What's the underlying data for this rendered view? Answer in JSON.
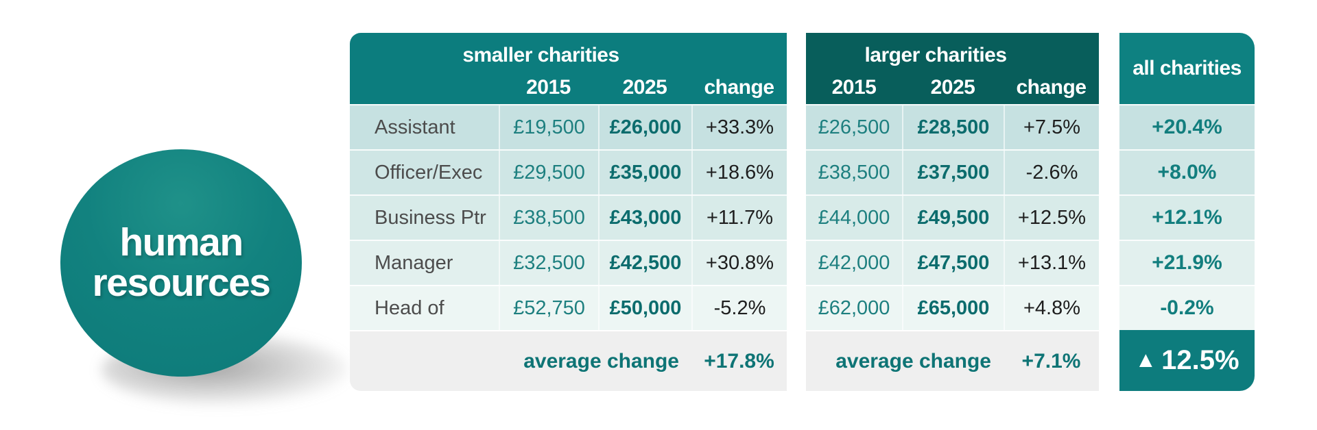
{
  "badge": {
    "line1": "human",
    "line2": "resources",
    "color": "#0e7c7b"
  },
  "columns": {
    "y2015": "2015",
    "y2025": "2025",
    "change": "change"
  },
  "smaller": {
    "title": "smaller charities",
    "rows": [
      {
        "role": "Assistant",
        "y2015": "£19,500",
        "y2025": "£26,000",
        "change": "+33.3%"
      },
      {
        "role": "Officer/Exec",
        "y2015": "£29,500",
        "y2025": "£35,000",
        "change": "+18.6%"
      },
      {
        "role": "Business Ptr",
        "y2015": "£38,500",
        "y2025": "£43,000",
        "change": "+11.7%"
      },
      {
        "role": "Manager",
        "y2015": "£32,500",
        "y2025": "£42,500",
        "change": "+30.8%"
      },
      {
        "role": "Head of",
        "y2015": "£52,750",
        "y2025": "£50,000",
        "change": "-5.2%"
      }
    ],
    "footer_label": "average change",
    "footer_value": "+17.8%"
  },
  "larger": {
    "title": "larger charities",
    "rows": [
      {
        "y2015": "£26,500",
        "y2025": "£28,500",
        "change": "+7.5%"
      },
      {
        "y2015": "£38,500",
        "y2025": "£37,500",
        "change": "-2.6%"
      },
      {
        "y2015": "£44,000",
        "y2025": "£49,500",
        "change": "+12.5%"
      },
      {
        "y2015": "£42,000",
        "y2025": "£47,500",
        "change": "+13.1%"
      },
      {
        "y2015": "£62,000",
        "y2025": "£65,000",
        "change": "+4.8%"
      }
    ],
    "footer_label": "average change",
    "footer_value": "+7.1%"
  },
  "all": {
    "title": "all charities",
    "values": [
      "+20.4%",
      "+8.0%",
      "+12.1%",
      "+21.9%",
      "-0.2%"
    ],
    "footer_icon": "▲",
    "footer_value": "12.5%"
  },
  "colors": {
    "header_teal": "#0c7d7e",
    "header_dark_teal": "#085e5b",
    "all_header_teal": "#0e8181",
    "footer_gray": "#efefef",
    "value_teal": "#1d7f7f",
    "value_teal_bold": "#0c6c6d",
    "change_text": "#1e1e1e",
    "row_shades": [
      "#c6e1e1",
      "#cfe6e5",
      "#d8ebe9",
      "#e2f0ee",
      "#edf6f4"
    ]
  },
  "chart_data": {
    "type": "table",
    "title": "human resources",
    "row_labels": [
      "Assistant",
      "Officer/Exec",
      "Business Ptr",
      "Manager",
      "Head of"
    ],
    "groups": [
      {
        "name": "smaller charities",
        "columns": [
          "2015",
          "2025",
          "change"
        ],
        "rows": [
          [
            "£19,500",
            "£26,000",
            "+33.3%"
          ],
          [
            "£29,500",
            "£35,000",
            "+18.6%"
          ],
          [
            "£38,500",
            "£43,000",
            "+11.7%"
          ],
          [
            "£32,500",
            "£42,500",
            "+30.8%"
          ],
          [
            "£52,750",
            "£50,000",
            "-5.2%"
          ]
        ],
        "average_change": "+17.8%"
      },
      {
        "name": "larger charities",
        "columns": [
          "2015",
          "2025",
          "change"
        ],
        "rows": [
          [
            "£26,500",
            "£28,500",
            "+7.5%"
          ],
          [
            "£38,500",
            "£37,500",
            "-2.6%"
          ],
          [
            "£44,000",
            "£49,500",
            "+12.5%"
          ],
          [
            "£42,000",
            "£47,500",
            "+13.1%"
          ],
          [
            "£62,000",
            "£65,000",
            "+4.8%"
          ]
        ],
        "average_change": "+7.1%"
      },
      {
        "name": "all charities",
        "columns": [
          "change"
        ],
        "rows": [
          [
            "+20.4%"
          ],
          [
            "+8.0%"
          ],
          [
            "+12.1%"
          ],
          [
            "+21.9%"
          ],
          [
            "-0.2%"
          ]
        ],
        "average_change": "▲12.5%"
      }
    ]
  }
}
